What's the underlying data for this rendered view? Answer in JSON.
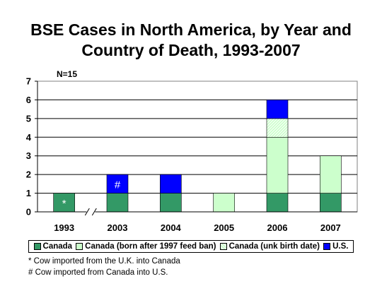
{
  "chart_data": {
    "type": "bar",
    "stacked": true,
    "title_lines": [
      "BSE Cases in North America, by Year and",
      "Country of Death, 1993-2007"
    ],
    "annotation": "N=15",
    "categories": [
      "1993",
      "2003",
      "2004",
      "2005",
      "2006",
      "2007"
    ],
    "series": [
      {
        "name": "Canada",
        "values": [
          1,
          1,
          1,
          0,
          1,
          1
        ]
      },
      {
        "name": "Canada (born after 1997 feed ban)",
        "values": [
          0,
          0,
          0,
          1,
          3,
          2
        ]
      },
      {
        "name": "Canada (unk birth date)",
        "values": [
          0,
          0,
          0,
          0,
          1,
          0
        ]
      },
      {
        "name": "U.S.",
        "values": [
          0,
          1,
          1,
          0,
          1,
          0
        ]
      }
    ],
    "bar_marks": [
      {
        "category": "1993",
        "series": "Canada",
        "symbol": "*"
      },
      {
        "category": "2003",
        "series": "U.S.",
        "symbol": "#"
      }
    ],
    "ylim": [
      0,
      7
    ],
    "yticks": [
      0,
      1,
      2,
      3,
      4,
      5,
      6,
      7
    ],
    "grid": true,
    "axis_break_after": "1993",
    "legend_position": "bottom",
    "colors": {
      "Canada": "#339966",
      "Canada (born after 1997 feed ban)": "#ccffcc",
      "Canada (unk birth date)": "#ccffcc",
      "U.S.": "#0000ff",
      "plot_border": "#808080",
      "grid": "#000000"
    },
    "footnotes": [
      "* Cow imported from the U.K. into Canada",
      "# Cow imported from Canada into U.S."
    ]
  }
}
